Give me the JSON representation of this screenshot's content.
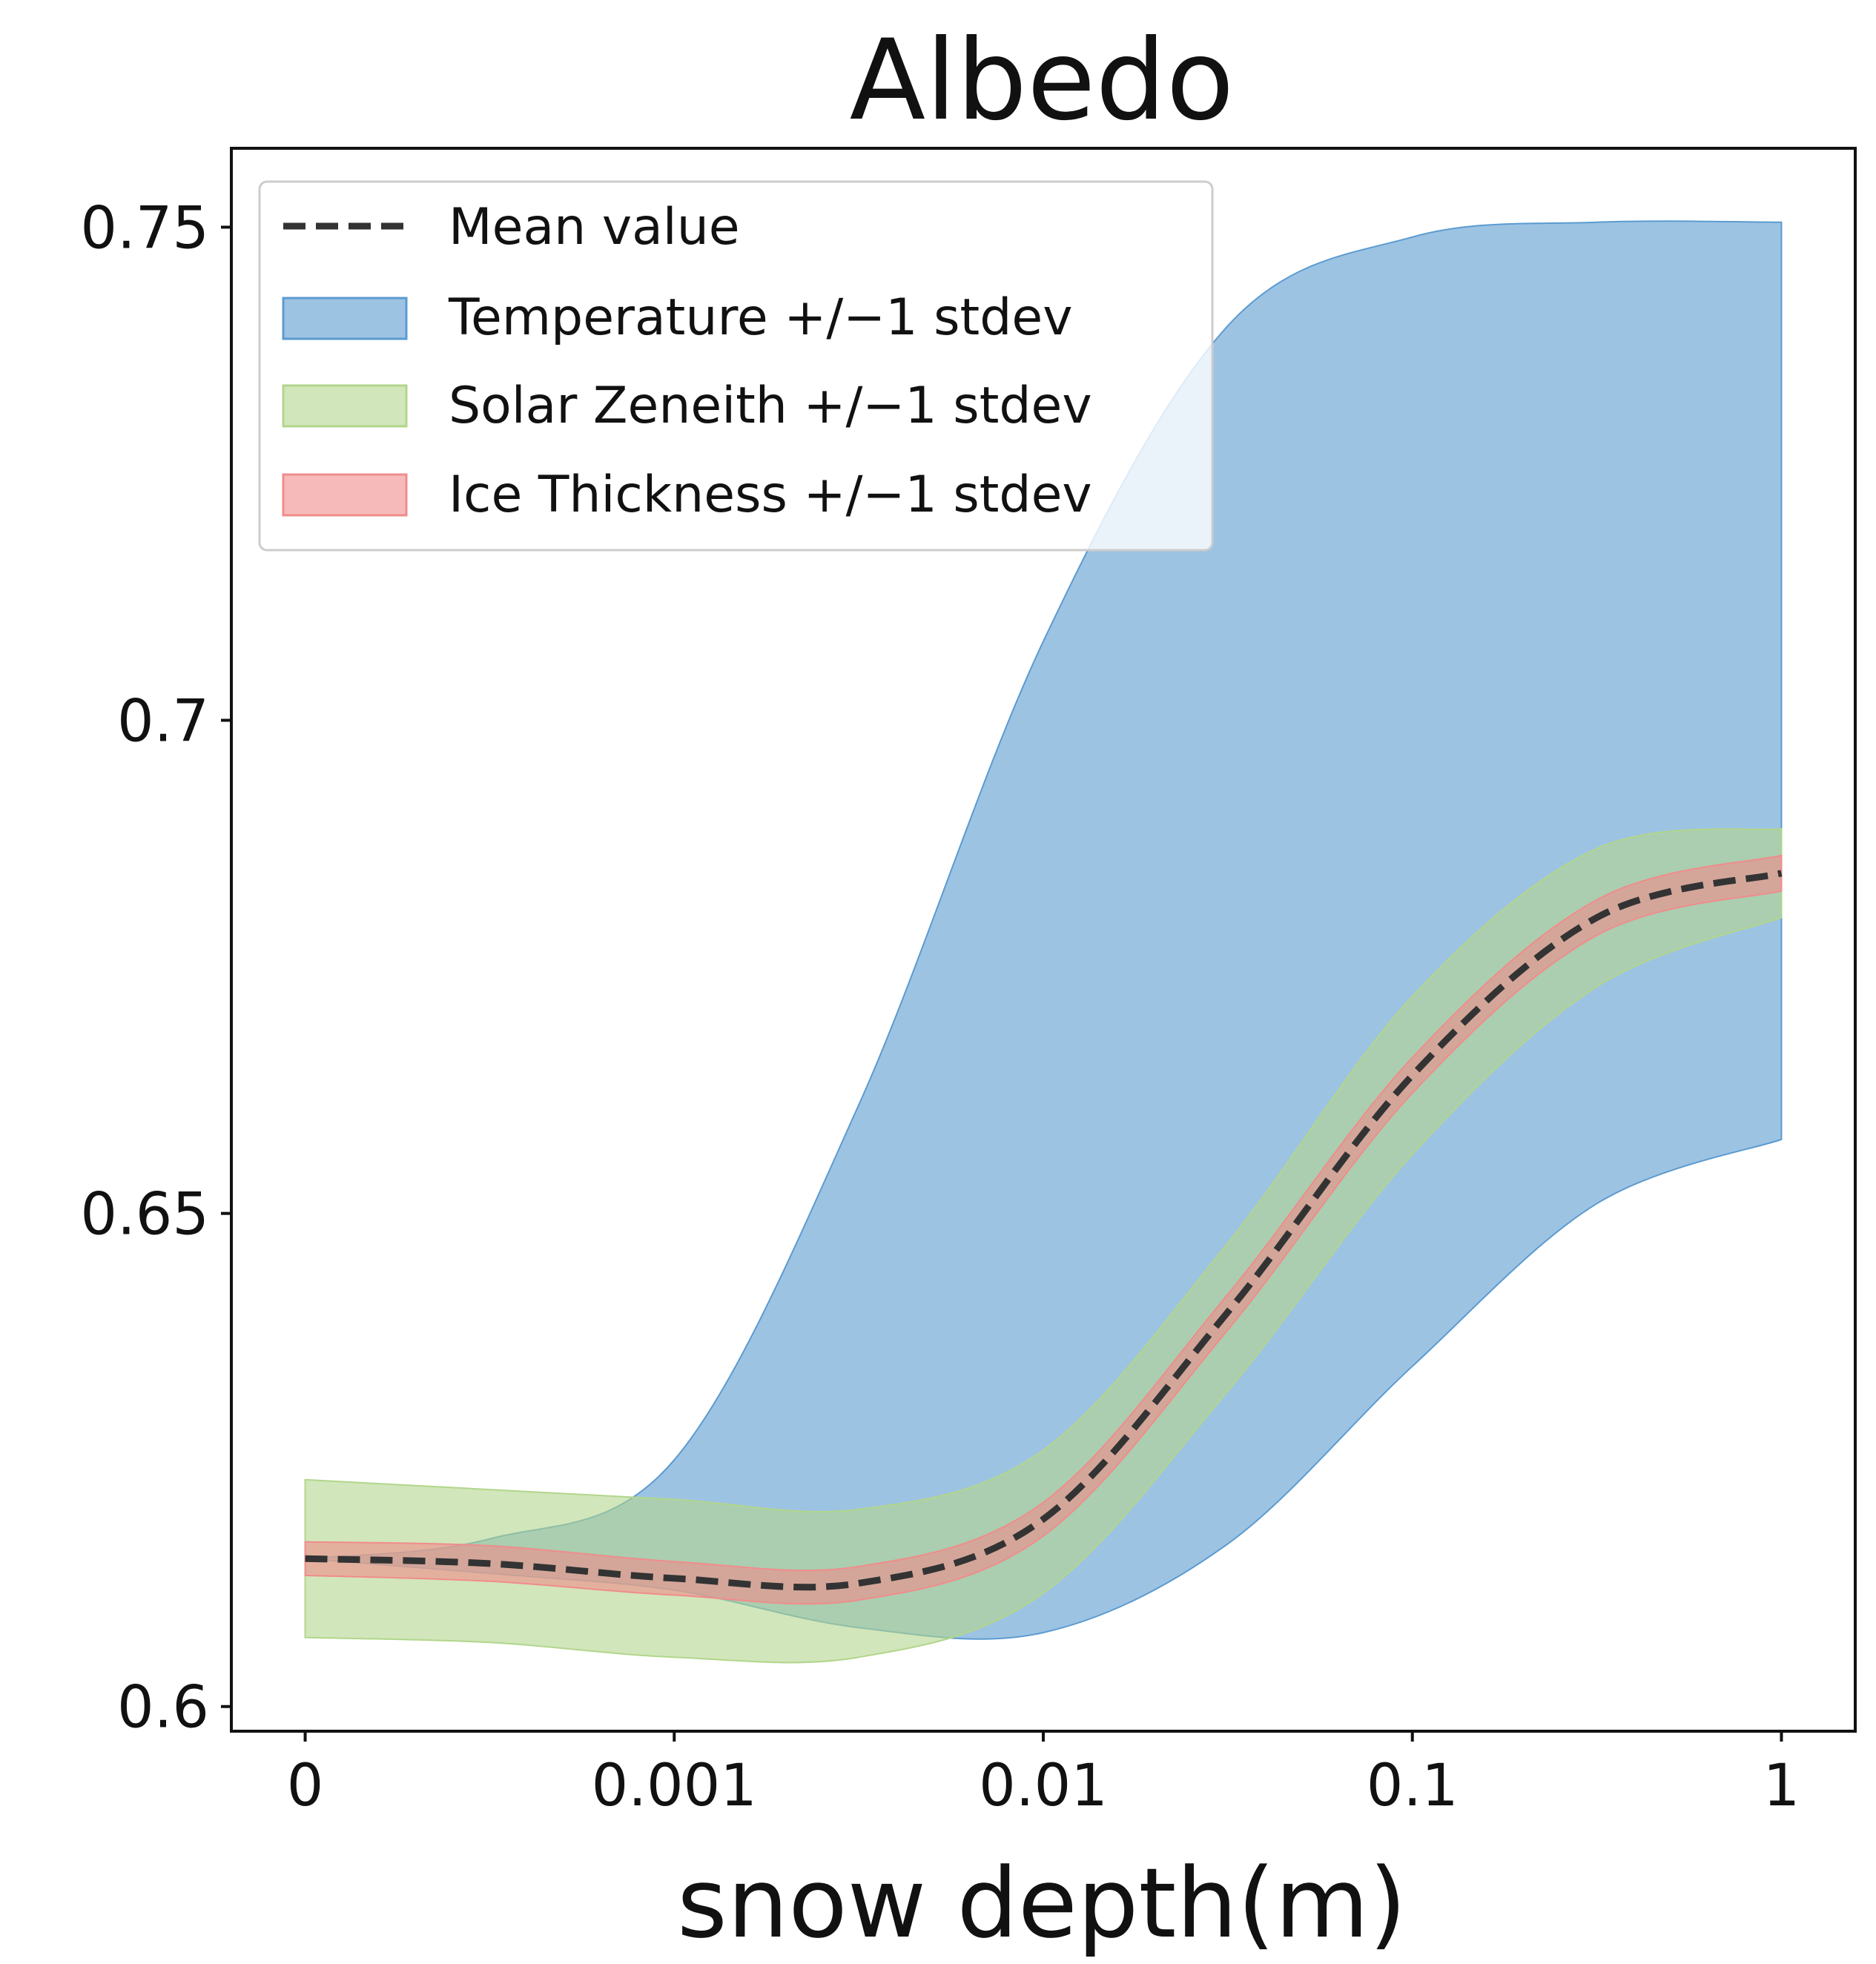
{
  "chart_data": {
    "type": "area",
    "title": "Albedo",
    "xlabel": "snow depth(m)",
    "ylabel": "",
    "x_tick_labels": [
      "0",
      "0.001",
      "0.01",
      "0.1",
      "1"
    ],
    "y_ticks": [
      0.6,
      0.65,
      0.7,
      0.75
    ],
    "y_tick_labels": [
      "0.6",
      "0.65",
      "0.7",
      "0.75"
    ],
    "ylim": [
      0.5975,
      0.758
    ],
    "xlim_position": [
      -0.2,
      4.2
    ],
    "x_position_note": "x position index: 0 -> 0, 1 -> 0.001, 2 -> 0.01, 3 -> 0.1, 4 -> 1",
    "x_positions": [
      0,
      0.5,
      1,
      1.5,
      2,
      2.5,
      3,
      3.5,
      4
    ],
    "mean": [
      0.615,
      0.6145,
      0.613,
      0.6125,
      0.619,
      0.64,
      0.664,
      0.68,
      0.6845
    ],
    "series": [
      {
        "name": "Temperature +/−1 stdev",
        "color": "#5b9bd0",
        "lower": [
          0.615,
          0.6135,
          0.6118,
          0.608,
          0.6075,
          0.6165,
          0.6345,
          0.651,
          0.6575
        ],
        "upper": [
          0.615,
          0.617,
          0.625,
          0.661,
          0.708,
          0.74,
          0.749,
          0.7505,
          0.7505
        ]
      },
      {
        "name": "Solar Zeneith +/−1 stdev",
        "color": "#b2d68c",
        "lower": [
          0.607,
          0.6065,
          0.605,
          0.605,
          0.6115,
          0.632,
          0.656,
          0.673,
          0.68
        ],
        "upper": [
          0.623,
          0.622,
          0.621,
          0.62,
          0.626,
          0.647,
          0.672,
          0.687,
          0.689
        ]
      },
      {
        "name": "Ice Thickness +/−1 stdev",
        "color": "#f08c8c",
        "lower": [
          0.6133,
          0.6127,
          0.6113,
          0.6108,
          0.6173,
          0.6382,
          0.6622,
          0.6782,
          0.6827
        ],
        "upper": [
          0.6167,
          0.6163,
          0.6147,
          0.6142,
          0.6207,
          0.6418,
          0.6658,
          0.6818,
          0.6863
        ]
      }
    ],
    "legend": {
      "position": "top-left",
      "entries": [
        "Mean value",
        "Temperature +/−1 stdev",
        "Solar Zeneith +/−1 stdev",
        "Ice Thickness +/−1 stdev"
      ]
    }
  }
}
